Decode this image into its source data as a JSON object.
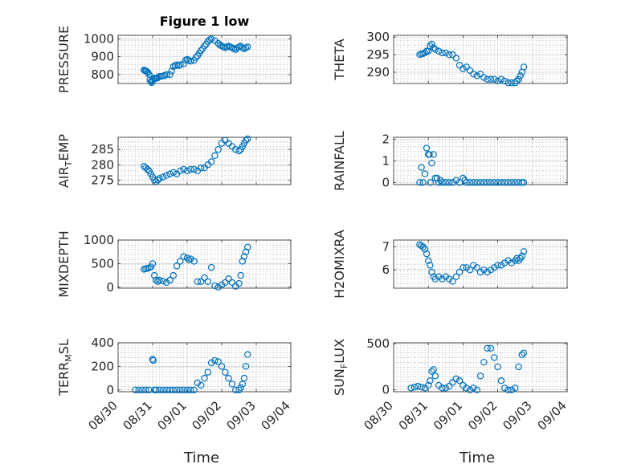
{
  "figure": {
    "marker_color": "#0072bd",
    "x_label": "Time",
    "x_ticks": [
      "08/30",
      "08/31",
      "09/01",
      "09/02",
      "09/03",
      "09/04"
    ]
  },
  "chart_data": [
    {
      "type": "scatter",
      "title": "Figure 1 low",
      "ylabel": "PRESSURE",
      "xlim": [
        0,
        5
      ],
      "ylim": [
        750,
        1020
      ],
      "yticks": [
        800,
        900,
        1000
      ],
      "grid": true,
      "x": [
        0.75,
        0.78,
        0.81,
        0.84,
        0.87,
        0.9,
        0.92,
        0.95,
        0.97,
        1.0,
        1.03,
        1.06,
        1.09,
        1.12,
        1.15,
        1.2,
        1.25,
        1.3,
        1.35,
        1.4,
        1.5,
        1.55,
        1.6,
        1.65,
        1.7,
        1.75,
        1.8,
        1.9,
        1.95,
        2.0,
        2.05,
        2.1,
        2.2,
        2.25,
        2.3,
        2.35,
        2.4,
        2.45,
        2.5,
        2.55,
        2.6,
        2.65,
        2.7,
        2.8,
        2.9,
        2.95,
        3.0,
        3.05,
        3.1,
        3.15,
        3.2,
        3.25,
        3.3,
        3.35,
        3.4,
        3.45,
        3.5,
        3.55,
        3.6,
        3.65,
        3.7,
        3.75
      ],
      "y": [
        825,
        822,
        820,
        815,
        810,
        800,
        770,
        760,
        755,
        770,
        780,
        775,
        778,
        780,
        782,
        790,
        790,
        792,
        795,
        800,
        800,
        820,
        845,
        850,
        855,
        850,
        855,
        860,
        880,
        885,
        880,
        875,
        880,
        895,
        905,
        920,
        935,
        945,
        960,
        970,
        985,
        995,
        1000,
        990,
        975,
        965,
        960,
        955,
        950,
        955,
        960,
        955,
        950,
        945,
        940,
        950,
        955,
        960,
        950,
        945,
        950,
        955
      ]
    },
    {
      "type": "scatter",
      "ylabel": "THETA",
      "xlim": [
        0,
        5
      ],
      "ylim": [
        286.8,
        300.5
      ],
      "yticks": [
        290,
        295,
        300
      ],
      "grid": true,
      "x": [
        0.75,
        0.8,
        0.85,
        0.9,
        0.95,
        1.0,
        1.05,
        1.1,
        1.15,
        1.2,
        1.3,
        1.4,
        1.5,
        1.6,
        1.7,
        1.8,
        1.9,
        2.0,
        2.1,
        2.2,
        2.3,
        2.4,
        2.5,
        2.6,
        2.7,
        2.8,
        2.9,
        3.0,
        3.1,
        3.2,
        3.3,
        3.4,
        3.5,
        3.55,
        3.6,
        3.65,
        3.7,
        3.75
      ],
      "y": [
        295,
        295.2,
        295.3,
        295.5,
        296,
        296,
        297.5,
        298,
        297,
        296.5,
        296,
        295.5,
        295.5,
        295,
        295,
        294,
        292,
        291,
        291.5,
        290.5,
        289.5,
        289,
        289.5,
        288.5,
        288,
        288,
        288,
        287.5,
        288,
        287.5,
        287,
        287,
        287,
        287.5,
        288,
        289,
        290,
        291.5
      ]
    },
    {
      "type": "scatter",
      "ylabel": "AIR_TEMP",
      "xlim": [
        0,
        5
      ],
      "ylim": [
        273.5,
        289
      ],
      "yticks": [
        275,
        280,
        285
      ],
      "grid": true,
      "x": [
        0.75,
        0.8,
        0.85,
        0.9,
        0.95,
        1.0,
        1.05,
        1.1,
        1.15,
        1.2,
        1.3,
        1.4,
        1.5,
        1.6,
        1.7,
        1.8,
        1.9,
        2.0,
        2.1,
        2.2,
        2.3,
        2.4,
        2.5,
        2.6,
        2.7,
        2.8,
        2.9,
        3.0,
        3.1,
        3.2,
        3.3,
        3.4,
        3.5,
        3.55,
        3.6,
        3.65,
        3.7,
        3.75
      ],
      "y": [
        279.5,
        279,
        278.5,
        278,
        277,
        276,
        275,
        274.5,
        275,
        275.5,
        276,
        276.5,
        277,
        277.5,
        277,
        278,
        278.5,
        278,
        278.5,
        278.5,
        278,
        279,
        279,
        280,
        281,
        283,
        285,
        287,
        288,
        287,
        286,
        285,
        284.5,
        285,
        286,
        287,
        288,
        288.5
      ]
    },
    {
      "type": "scatter",
      "ylabel": "RAINFALL",
      "xlim": [
        0,
        5
      ],
      "ylim": [
        -0.1,
        2.1
      ],
      "yticks": [
        0,
        1,
        2
      ],
      "grid": true,
      "x": [
        0.75,
        0.8,
        0.85,
        0.9,
        0.95,
        1.0,
        1.03,
        1.06,
        1.1,
        1.15,
        1.2,
        1.25,
        1.3,
        1.35,
        1.4,
        1.5,
        1.6,
        1.7,
        1.8,
        1.9,
        2.0,
        2.05,
        2.1,
        2.2,
        2.3,
        2.4,
        2.5,
        2.6,
        2.7,
        2.8,
        2.9,
        3.0,
        3.1,
        3.2,
        3.3,
        3.4,
        3.5,
        3.6,
        3.7,
        3.75
      ],
      "y": [
        0,
        0.7,
        0,
        0.4,
        1.6,
        1.3,
        1.3,
        0,
        0.9,
        1.3,
        0.2,
        0.2,
        0,
        0.1,
        0,
        0,
        0,
        0,
        0.1,
        0,
        0.2,
        0.1,
        0,
        0,
        0,
        0,
        0,
        0,
        0,
        0,
        0,
        0,
        0,
        0,
        0,
        0,
        0,
        0,
        0,
        0
      ]
    },
    {
      "type": "scatter",
      "ylabel": "MIXDEPTH",
      "xlim": [
        0,
        5
      ],
      "ylim": [
        -20,
        1000
      ],
      "yticks": [
        0,
        500,
        1000
      ],
      "grid": true,
      "x": [
        0.75,
        0.8,
        0.85,
        0.9,
        0.95,
        1.0,
        1.05,
        1.1,
        1.15,
        1.2,
        1.3,
        1.4,
        1.5,
        1.6,
        1.7,
        1.8,
        1.9,
        2.0,
        2.05,
        2.1,
        2.2,
        2.3,
        2.4,
        2.5,
        2.6,
        2.7,
        2.8,
        2.9,
        3.0,
        3.1,
        3.2,
        3.3,
        3.4,
        3.5,
        3.55,
        3.6,
        3.65,
        3.7,
        3.75
      ],
      "y": [
        380,
        390,
        400,
        410,
        430,
        500,
        250,
        150,
        120,
        150,
        130,
        100,
        150,
        250,
        450,
        550,
        650,
        620,
        580,
        600,
        550,
        120,
        120,
        200,
        120,
        420,
        30,
        0,
        50,
        100,
        180,
        100,
        20,
        80,
        250,
        550,
        650,
        750,
        850
      ]
    },
    {
      "type": "scatter",
      "ylabel": "H2OMIXRA",
      "xlim": [
        0,
        5
      ],
      "ylim": [
        5.2,
        7.3
      ],
      "yticks": [
        6,
        7
      ],
      "grid": true,
      "x": [
        0.75,
        0.8,
        0.85,
        0.9,
        0.95,
        1.0,
        1.05,
        1.1,
        1.15,
        1.2,
        1.3,
        1.4,
        1.5,
        1.6,
        1.7,
        1.8,
        1.9,
        2.0,
        2.1,
        2.2,
        2.3,
        2.4,
        2.5,
        2.6,
        2.7,
        2.8,
        2.9,
        3.0,
        3.1,
        3.2,
        3.3,
        3.4,
        3.5,
        3.55,
        3.6,
        3.65,
        3.7,
        3.75
      ],
      "y": [
        7.1,
        7.05,
        7,
        6.9,
        6.7,
        6.4,
        6.2,
        5.9,
        5.7,
        5.6,
        5.7,
        5.6,
        5.7,
        5.6,
        5.5,
        5.7,
        5.9,
        6.1,
        6.1,
        6.0,
        6.2,
        6.1,
        5.9,
        6.0,
        5.9,
        6.0,
        6.1,
        6.2,
        6.2,
        6.3,
        6.4,
        6.3,
        6.4,
        6.5,
        6.4,
        6.5,
        6.6,
        6.8
      ]
    },
    {
      "type": "scatter",
      "ylabel": "TERR_MSL",
      "xlim": [
        0,
        5
      ],
      "ylim": [
        -15,
        400
      ],
      "yticks": [
        0,
        200,
        400
      ],
      "grid": true,
      "x": [
        0.5,
        0.6,
        0.7,
        0.8,
        0.9,
        1.0,
        1.02,
        1.05,
        1.1,
        1.2,
        1.3,
        1.4,
        1.5,
        1.6,
        1.7,
        1.8,
        1.9,
        2.0,
        2.1,
        2.2,
        2.3,
        2.4,
        2.5,
        2.6,
        2.7,
        2.8,
        2.9,
        3.0,
        3.1,
        3.2,
        3.3,
        3.4,
        3.5,
        3.55,
        3.6,
        3.65,
        3.7,
        3.75
      ],
      "y": [
        0,
        0,
        0,
        0,
        0,
        260,
        250,
        0,
        0,
        0,
        0,
        0,
        0,
        0,
        0,
        0,
        0,
        0,
        0,
        0,
        60,
        40,
        100,
        150,
        230,
        250,
        240,
        200,
        150,
        100,
        50,
        0,
        0,
        20,
        50,
        100,
        200,
        300
      ]
    },
    {
      "type": "scatter",
      "ylabel": "SUN_FLUX",
      "xlim": [
        0,
        5
      ],
      "ylim": [
        -20,
        510
      ],
      "yticks": [
        0,
        500
      ],
      "grid": true,
      "x": [
        0.5,
        0.6,
        0.7,
        0.8,
        0.9,
        1.0,
        1.05,
        1.1,
        1.15,
        1.2,
        1.3,
        1.4,
        1.5,
        1.6,
        1.7,
        1.8,
        1.9,
        2.0,
        2.1,
        2.2,
        2.3,
        2.4,
        2.5,
        2.6,
        2.7,
        2.8,
        2.9,
        3.0,
        3.1,
        3.2,
        3.3,
        3.4,
        3.5,
        3.6,
        3.7,
        3.75
      ],
      "y": [
        20,
        30,
        40,
        30,
        20,
        50,
        100,
        200,
        220,
        150,
        50,
        20,
        20,
        40,
        80,
        120,
        100,
        50,
        20,
        0,
        20,
        0,
        150,
        300,
        450,
        450,
        350,
        250,
        100,
        20,
        0,
        0,
        20,
        250,
        380,
        400
      ]
    }
  ]
}
